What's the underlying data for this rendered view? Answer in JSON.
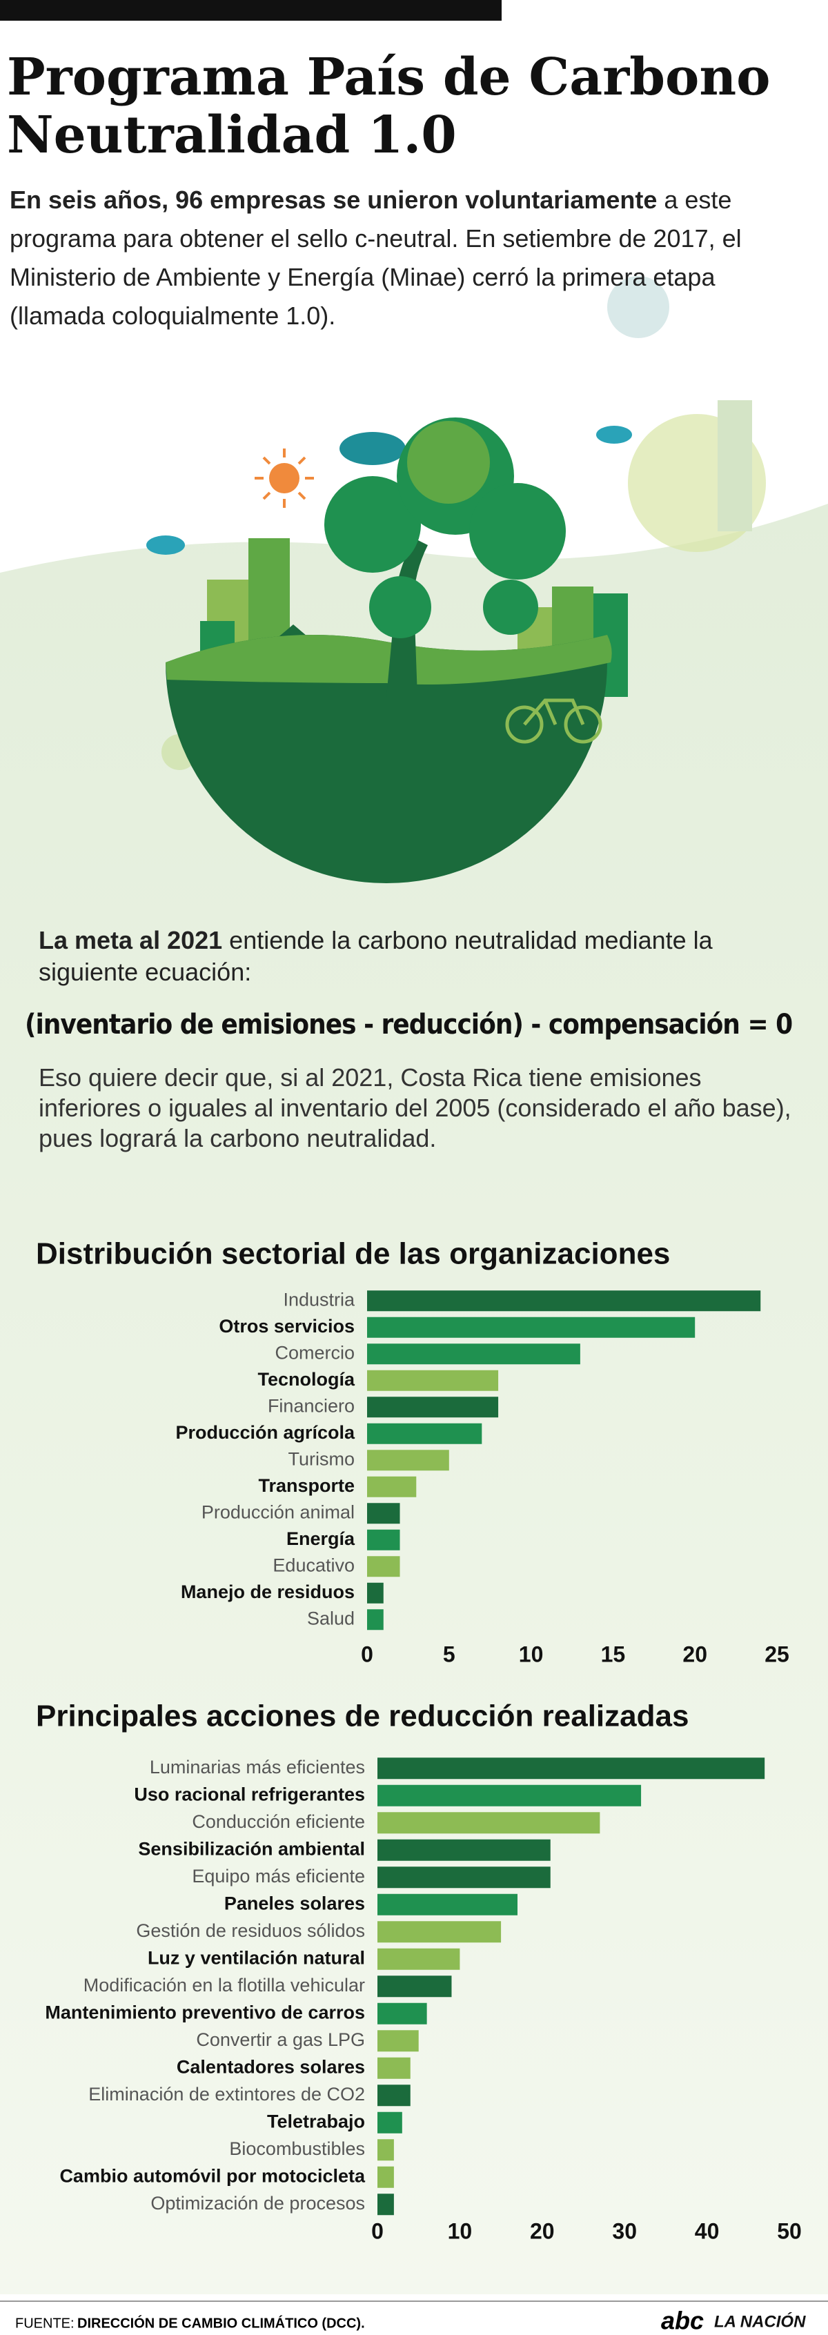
{
  "header": {
    "title": "Programa País de Carbono Neutralidad 1.0"
  },
  "intro": {
    "bold": "En seis años, 96 empresas se unieron voluntariamente",
    "text": " a este programa para obtener el sello c-neutral. En setiembre de 2017, el Ministerio de Ambiente y Energía (Minae) cerró la primera etapa (llamada coloquialmente 1.0)."
  },
  "goal": {
    "bold": "La meta al 2021",
    "text": " entiende la carbono neutralidad mediante la siguiente ecuación:",
    "equation": "(inventario de emisiones - reducción) - compensación = 0",
    "explanation": "Eso quiere decir que, si al 2021, Costa Rica tiene emisiones inferiores o iguales al inventario del 2005 (considerado el año base), pues logrará la carbono neutralidad."
  },
  "chart_data": [
    {
      "type": "bar",
      "title": "Distribución sectorial de las organizaciones",
      "categories": [
        "Industria",
        "Otros servicios",
        "Comercio",
        "Tecnología",
        "Financiero",
        "Producción agrícola",
        "Turismo",
        "Transporte",
        "Producción animal",
        "Energía",
        "Educativo",
        "Manejo de residuos",
        "Salud"
      ],
      "values": [
        24,
        20,
        13,
        8,
        8,
        7,
        5,
        3,
        2,
        2,
        2,
        1,
        1
      ],
      "colors": [
        "#1b6b3c",
        "#1f9150",
        "#1f9150",
        "#8dbb54",
        "#1b6b3c",
        "#1f9150",
        "#8dbb54",
        "#8dbb54",
        "#1b6b3c",
        "#1f9150",
        "#8dbb54",
        "#1b6b3c",
        "#1f9150"
      ],
      "xlim": [
        0,
        25
      ],
      "xticks": [
        0,
        5,
        10,
        15,
        20,
        25
      ]
    },
    {
      "type": "bar",
      "title": "Principales acciones de reducción realizadas",
      "categories": [
        "Luminarias más eficientes",
        "Uso racional refrigerantes",
        "Conducción eficiente",
        "Sensibilización ambiental",
        "Equipo más eficiente",
        "Paneles solares",
        "Gestión  de residuos sólidos",
        "Luz y ventilación natural",
        "Modificación en la flotilla vehicular",
        "Mantenimiento preventivo de carros",
        "Convertir a gas LPG",
        "Calentadores solares",
        "Eliminación de extintores de CO2",
        "Teletrabajo",
        "Biocombustibles",
        "Cambio automóvil por motocicleta",
        "Optimización de procesos"
      ],
      "values": [
        47,
        32,
        27,
        21,
        21,
        17,
        15,
        10,
        9,
        6,
        5,
        4,
        4,
        3,
        2,
        2,
        2
      ],
      "colors": [
        "#1b6b3c",
        "#1f9150",
        "#8dbb54",
        "#1b6b3c",
        "#1b6b3c",
        "#1f9150",
        "#8dbb54",
        "#8dbb54",
        "#1b6b3c",
        "#1f9150",
        "#8dbb54",
        "#8dbb54",
        "#1b6b3c",
        "#1f9150",
        "#8dbb54",
        "#8dbb54",
        "#1b6b3c"
      ],
      "xlim": [
        0,
        50
      ],
      "xticks": [
        0,
        10,
        20,
        30,
        40,
        50
      ]
    }
  ],
  "footer": {
    "source_label": "FUENTE:",
    "source": "DIRECCIÓN DE CAMBIO CLIMÁTICO (DCC).",
    "logo_a": "abc",
    "logo_b": "LA NACIÓN"
  }
}
